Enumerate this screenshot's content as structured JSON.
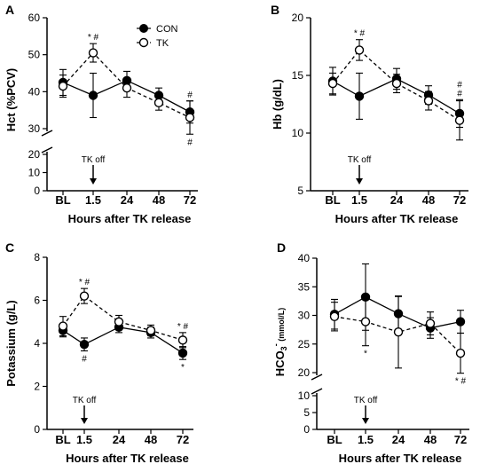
{
  "chart_data": [
    {
      "panel": "A",
      "type": "line",
      "categories": [
        "BL",
        "1.5",
        "24",
        "48",
        "72"
      ],
      "xlabel": "Hours after TK release",
      "ylabel": "Hct (%PCV)",
      "ylim_upper": [
        30,
        60
      ],
      "ylim_lower": [
        0,
        20
      ],
      "yticks_upper": [
        "30",
        "40",
        "50",
        "60"
      ],
      "yticks_lower": [
        "0",
        "10",
        "20"
      ],
      "series": [
        {
          "name": "CON",
          "values": [
            42.5,
            39,
            43,
            39,
            34.5
          ],
          "errors": [
            3.5,
            6,
            2.5,
            2,
            3
          ],
          "marker": "filled"
        },
        {
          "name": "TK",
          "values": [
            41.5,
            50.5,
            41,
            37,
            33
          ],
          "errors": [
            3,
            2.5,
            2.5,
            2,
            4.5
          ],
          "marker": "open"
        }
      ],
      "annotation": "TK off",
      "sig_marks": [
        {
          "x": "1.5",
          "text": "* #",
          "position": "above"
        },
        {
          "x": "72",
          "text": "#",
          "position": "above"
        },
        {
          "x": "72",
          "text": "#",
          "position": "below"
        }
      ]
    },
    {
      "panel": "B",
      "type": "line",
      "categories": [
        "BL",
        "1.5",
        "24",
        "48",
        "72"
      ],
      "xlabel": "Hours after TK release",
      "ylabel": "Hb (g/dL)",
      "ylim_upper": [
        5,
        20
      ],
      "yticks_upper": [
        "5",
        "10",
        "15",
        "20"
      ],
      "series": [
        {
          "name": "CON",
          "values": [
            14.5,
            13.2,
            14.7,
            13.3,
            11.7
          ],
          "errors": [
            1.2,
            2,
            0.9,
            0.8,
            1.2
          ],
          "marker": "filled"
        },
        {
          "name": "TK",
          "values": [
            14.3,
            17.2,
            14.3,
            12.8,
            11.1
          ],
          "errors": [
            0.9,
            0.9,
            0.8,
            0.8,
            1.7
          ],
          "marker": "open"
        }
      ],
      "annotation": "TK off",
      "sig_marks": [
        {
          "x": "1.5",
          "text": "* #",
          "position": "above"
        },
        {
          "x": "72",
          "text": "#",
          "position": "above"
        },
        {
          "x": "72",
          "text": "#",
          "position": "above2"
        }
      ]
    },
    {
      "panel": "C",
      "type": "line",
      "categories": [
        "BL",
        "1.5",
        "24",
        "48",
        "72"
      ],
      "xlabel": "Hours after TK release",
      "ylabel": "Potassium (g/L)",
      "ylim_upper": [
        0,
        8
      ],
      "yticks_upper": [
        "0",
        "2",
        "4",
        "6",
        "8"
      ],
      "series": [
        {
          "name": "CON",
          "values": [
            4.6,
            3.95,
            4.75,
            4.5,
            3.55
          ],
          "errors": [
            0.3,
            0.3,
            0.25,
            0.25,
            0.3
          ],
          "marker": "filled"
        },
        {
          "name": "TK",
          "values": [
            4.8,
            6.2,
            5.0,
            4.6,
            4.15
          ],
          "errors": [
            0.45,
            0.35,
            0.3,
            0.25,
            0.35
          ],
          "marker": "open"
        }
      ],
      "annotation": "TK off",
      "sig_marks": [
        {
          "x": "1.5",
          "text": "* #",
          "position": "above"
        },
        {
          "x": "1.5",
          "text": "#",
          "position": "below"
        },
        {
          "x": "72",
          "text": "* #",
          "position": "above"
        },
        {
          "x": "72",
          "text": "*",
          "position": "below"
        }
      ]
    },
    {
      "panel": "D",
      "type": "line",
      "categories": [
        "BL",
        "1.5",
        "24",
        "48",
        "72"
      ],
      "xlabel": "Hours after TK release",
      "ylabel": "HCO3- (mmol/L)",
      "ylim_upper": [
        20,
        40
      ],
      "ylim_lower": [
        0,
        10
      ],
      "yticks_upper": [
        "20",
        "25",
        "30",
        "35",
        "40"
      ],
      "yticks_lower": [
        "0",
        "5",
        "10"
      ],
      "series": [
        {
          "name": "CON",
          "values": [
            30.2,
            33.2,
            30.3,
            27.8,
            28.9
          ],
          "errors": [
            2.6,
            5.8,
            3,
            1.8,
            2
          ],
          "marker": "filled"
        },
        {
          "name": "TK",
          "values": [
            29.8,
            28.9,
            27.1,
            28.6,
            23.4
          ],
          "errors": [
            2.5,
            4.2,
            6.3,
            2,
            3.5
          ],
          "marker": "open"
        }
      ],
      "annotation": "TK off",
      "sig_marks": [
        {
          "x": "1.5",
          "text": "*",
          "position": "below"
        },
        {
          "x": "72",
          "text": "* #",
          "position": "below"
        }
      ]
    }
  ],
  "legend": {
    "con_label": "CON",
    "tk_label": "TK"
  },
  "colors": {
    "line": "#000000",
    "background": "#ffffff"
  }
}
